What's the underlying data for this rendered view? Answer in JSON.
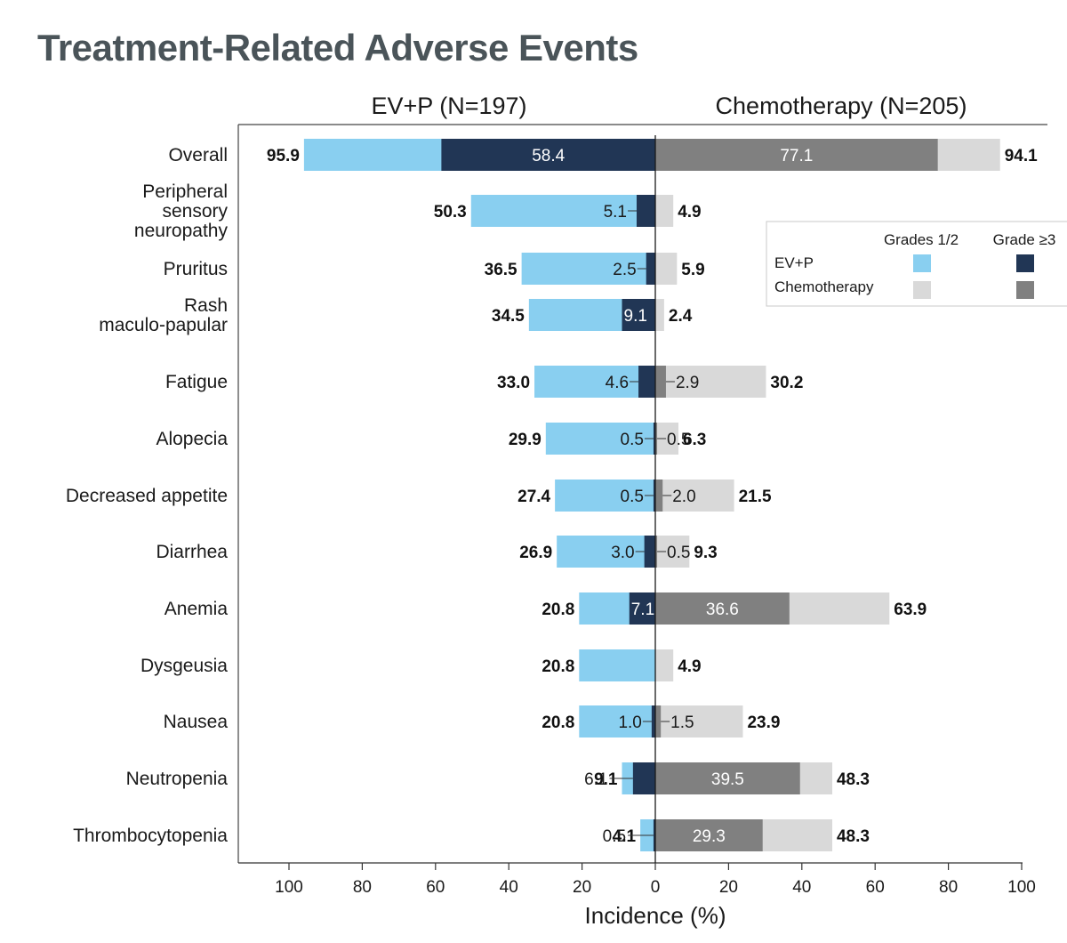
{
  "chart_data": {
    "type": "bar",
    "title": "Treatment-Related Adverse Events",
    "xlabel": "Incidence (%)",
    "xlim": [
      -100,
      100
    ],
    "x_ticks": [
      100,
      80,
      60,
      40,
      20,
      0,
      20,
      40,
      60,
      80,
      100
    ],
    "legend": {
      "placement": "top-right",
      "columns": [
        "Grades 1/2",
        "Grade ≥3"
      ],
      "rows": [
        "EV+P",
        "Chemotherapy"
      ]
    },
    "arms": [
      {
        "label": "EV+P (N=197)",
        "side": "left"
      },
      {
        "label": "Chemotherapy (N=205)",
        "side": "right"
      }
    ],
    "categories": [
      "Overall",
      "Peripheral sensory neuropathy",
      "Pruritus",
      "Rash maculo-papular",
      "Fatigue",
      "Alopecia",
      "Decreased appetite",
      "Diarrhea",
      "Anemia",
      "Dysgeusia",
      "Nausea",
      "Neutropenia",
      "Thrombocytopenia"
    ],
    "category_lines": [
      [
        "Overall"
      ],
      [
        "Peripheral",
        "sensory",
        "neuropathy"
      ],
      [
        "Pruritus"
      ],
      [
        "Rash",
        "maculo-papular"
      ],
      [
        "Fatigue"
      ],
      [
        "Alopecia"
      ],
      [
        "Decreased appetite"
      ],
      [
        "Diarrhea"
      ],
      [
        "Anemia"
      ],
      [
        "Dysgeusia"
      ],
      [
        "Nausea"
      ],
      [
        "Neutropenia"
      ],
      [
        "Thrombocytopenia"
      ]
    ],
    "series": [
      {
        "name": "EV+P Any grade",
        "values": [
          95.9,
          50.3,
          36.5,
          34.5,
          33.0,
          29.9,
          27.4,
          26.9,
          20.8,
          20.8,
          20.8,
          9.1,
          4.1
        ]
      },
      {
        "name": "EV+P Grade ≥3",
        "values": [
          58.4,
          5.1,
          2.5,
          9.1,
          4.6,
          0.5,
          0.5,
          3.0,
          7.1,
          null,
          1.0,
          6.1,
          0.5
        ]
      },
      {
        "name": "Chemotherapy Any grade",
        "values": [
          94.1,
          4.9,
          5.9,
          2.4,
          30.2,
          6.3,
          21.5,
          9.3,
          63.9,
          4.9,
          23.9,
          48.3,
          48.3
        ]
      },
      {
        "name": "Chemotherapy Grade ≥3",
        "values": [
          77.1,
          null,
          null,
          null,
          2.9,
          0.5,
          2.0,
          0.5,
          36.6,
          null,
          1.5,
          39.5,
          29.3
        ]
      }
    ],
    "colors": {
      "evp_low": "#89cff0",
      "evp_high": "#213655",
      "chemo_low": "#d9d9d9",
      "chemo_high": "#808080",
      "title": "#4a5459"
    }
  }
}
